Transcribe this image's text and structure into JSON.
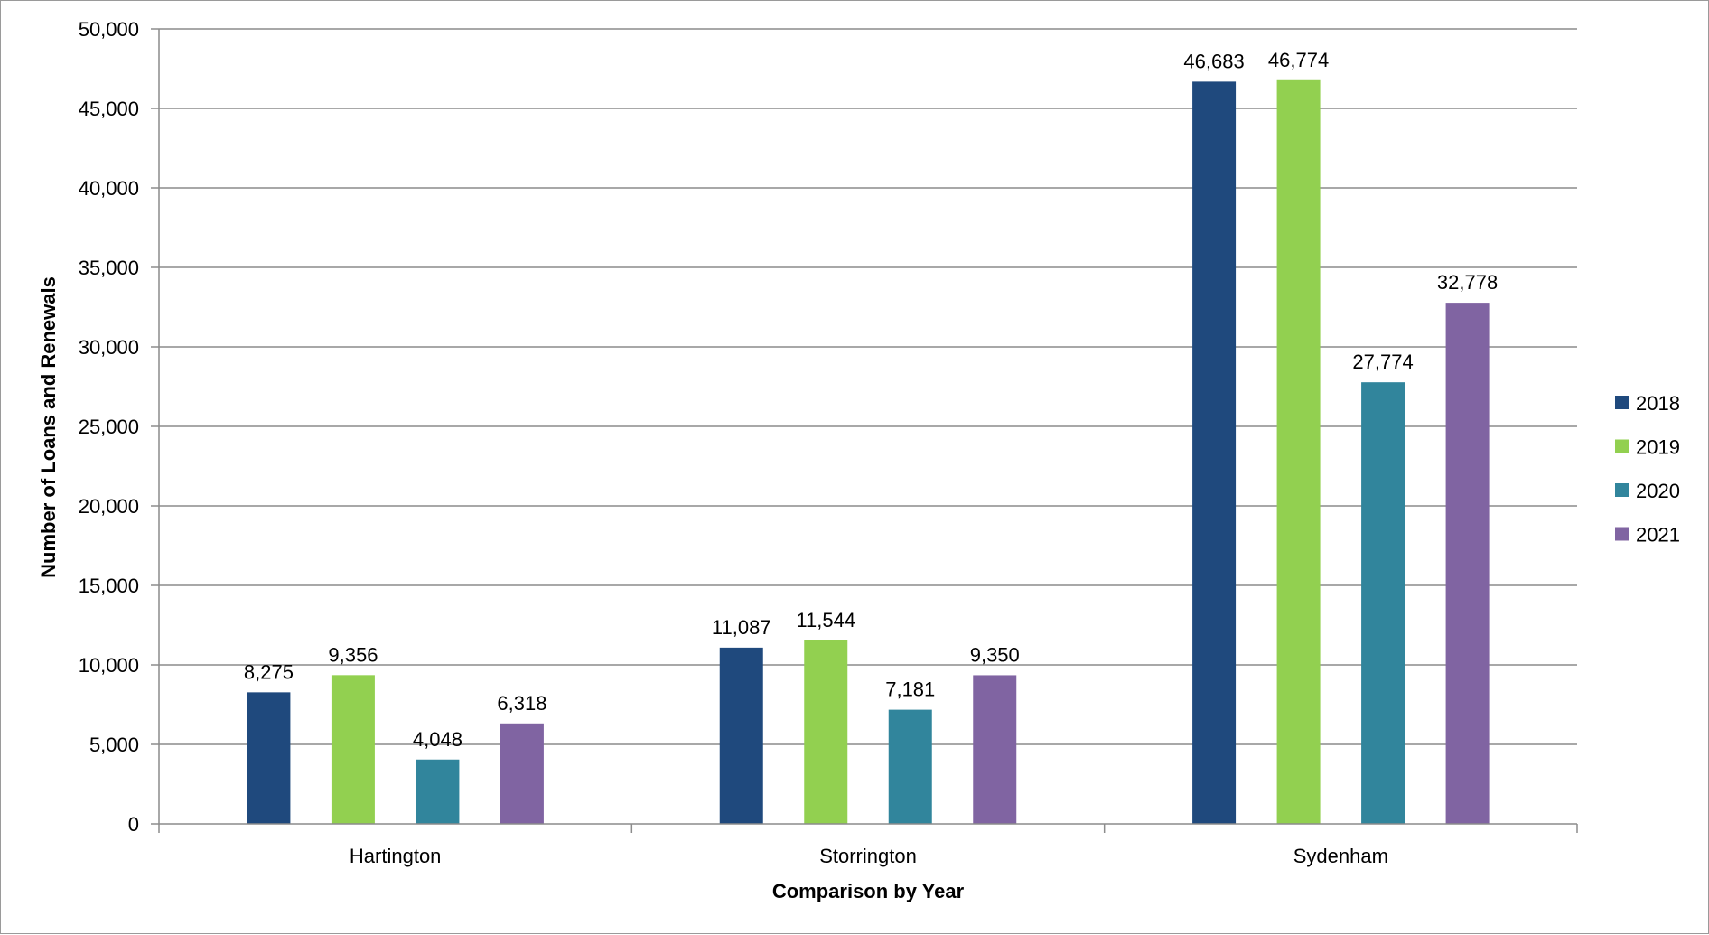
{
  "chart_data": {
    "type": "bar",
    "title": "",
    "xlabel": "Comparison by Year",
    "ylabel": "Number of Loans and Renewals",
    "categories": [
      "Hartington",
      "Storrington",
      "Sydenham"
    ],
    "series": [
      {
        "name": "2018",
        "color": "#1f497d",
        "values": [
          8275,
          11087,
          46683
        ],
        "labels": [
          "8,275",
          "11,087",
          "46,683"
        ]
      },
      {
        "name": "2019",
        "color": "#92d050",
        "values": [
          9356,
          11544,
          46774
        ],
        "labels": [
          "9,356",
          "11,544",
          "46,774"
        ]
      },
      {
        "name": "2020",
        "color": "#31859c",
        "values": [
          4048,
          7181,
          27774
        ],
        "labels": [
          "4,048",
          "7,181",
          "27,774"
        ]
      },
      {
        "name": "2021",
        "color": "#8064a2",
        "values": [
          6318,
          9350,
          32778
        ],
        "labels": [
          "6,318",
          "9,350",
          "32,778"
        ]
      }
    ],
    "ylim": [
      0,
      50000
    ],
    "yticks": [
      0,
      5000,
      10000,
      15000,
      20000,
      25000,
      30000,
      35000,
      40000,
      45000,
      50000
    ],
    "ytick_labels": [
      "0",
      "5,000",
      "10,000",
      "15,000",
      "20,000",
      "25,000",
      "30,000",
      "35,000",
      "40,000",
      "45,000",
      "50,000"
    ],
    "grid": true,
    "legend": "right"
  }
}
